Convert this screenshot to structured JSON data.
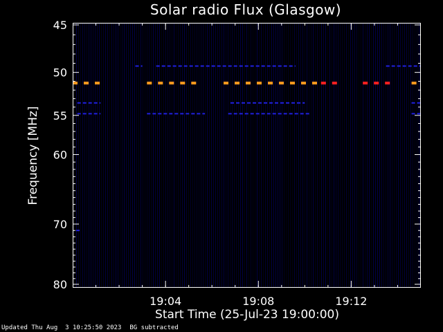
{
  "chart_data": {
    "type": "heatmap",
    "title": "Solar radio Flux (Glasgow)",
    "ylabel": "Frequency [MHz]",
    "xlabel": "Start Time (25-Jul-23 19:00:00)",
    "y_scale": "log",
    "ylim": [
      45,
      80
    ],
    "y_inverted": true,
    "y_ticks": [
      45,
      50,
      55,
      60,
      70,
      80
    ],
    "x_ticks": [
      "19:04",
      "19:08",
      "19:12"
    ],
    "x_tick_minutes": [
      4,
      8,
      12
    ],
    "xlim_minutes": [
      0,
      15
    ],
    "grid": false,
    "background": "#000000",
    "colors": {
      "low": "#000060",
      "blue": "#2020e0",
      "orange": "#ff9a1e",
      "red": "#ff2020"
    },
    "bands": [
      {
        "freq_mhz": 51.2,
        "level": "orange",
        "segments_min": [
          [
            0.0,
            1.2
          ],
          [
            3.2,
            5.5
          ],
          [
            6.5,
            10.7
          ],
          [
            14.6,
            14.9
          ]
        ]
      },
      {
        "freq_mhz": 51.2,
        "level": "red",
        "segments_min": [
          [
            10.7,
            11.4
          ],
          [
            12.5,
            13.7
          ]
        ]
      },
      {
        "freq_mhz": 49.3,
        "level": "blue",
        "segments_min": [
          [
            2.7,
            3.0
          ],
          [
            3.6,
            9.6
          ],
          [
            13.5,
            15.0
          ]
        ]
      },
      {
        "freq_mhz": 53.5,
        "level": "blue",
        "segments_min": [
          [
            0.2,
            1.2
          ],
          [
            6.8,
            10.0
          ],
          [
            14.6,
            15.0
          ]
        ]
      },
      {
        "freq_mhz": 54.8,
        "level": "blue",
        "segments_min": [
          [
            0.2,
            1.2
          ],
          [
            3.2,
            5.7
          ],
          [
            6.7,
            10.2
          ],
          [
            14.6,
            15.0
          ]
        ]
      },
      {
        "freq_mhz": 71.0,
        "level": "blue",
        "segments_min": [
          [
            0.15,
            0.35
          ]
        ]
      }
    ]
  },
  "footer": {
    "updated": "Updated Thu Aug  3 10:25:50 2023",
    "note": "BG subtracted"
  }
}
